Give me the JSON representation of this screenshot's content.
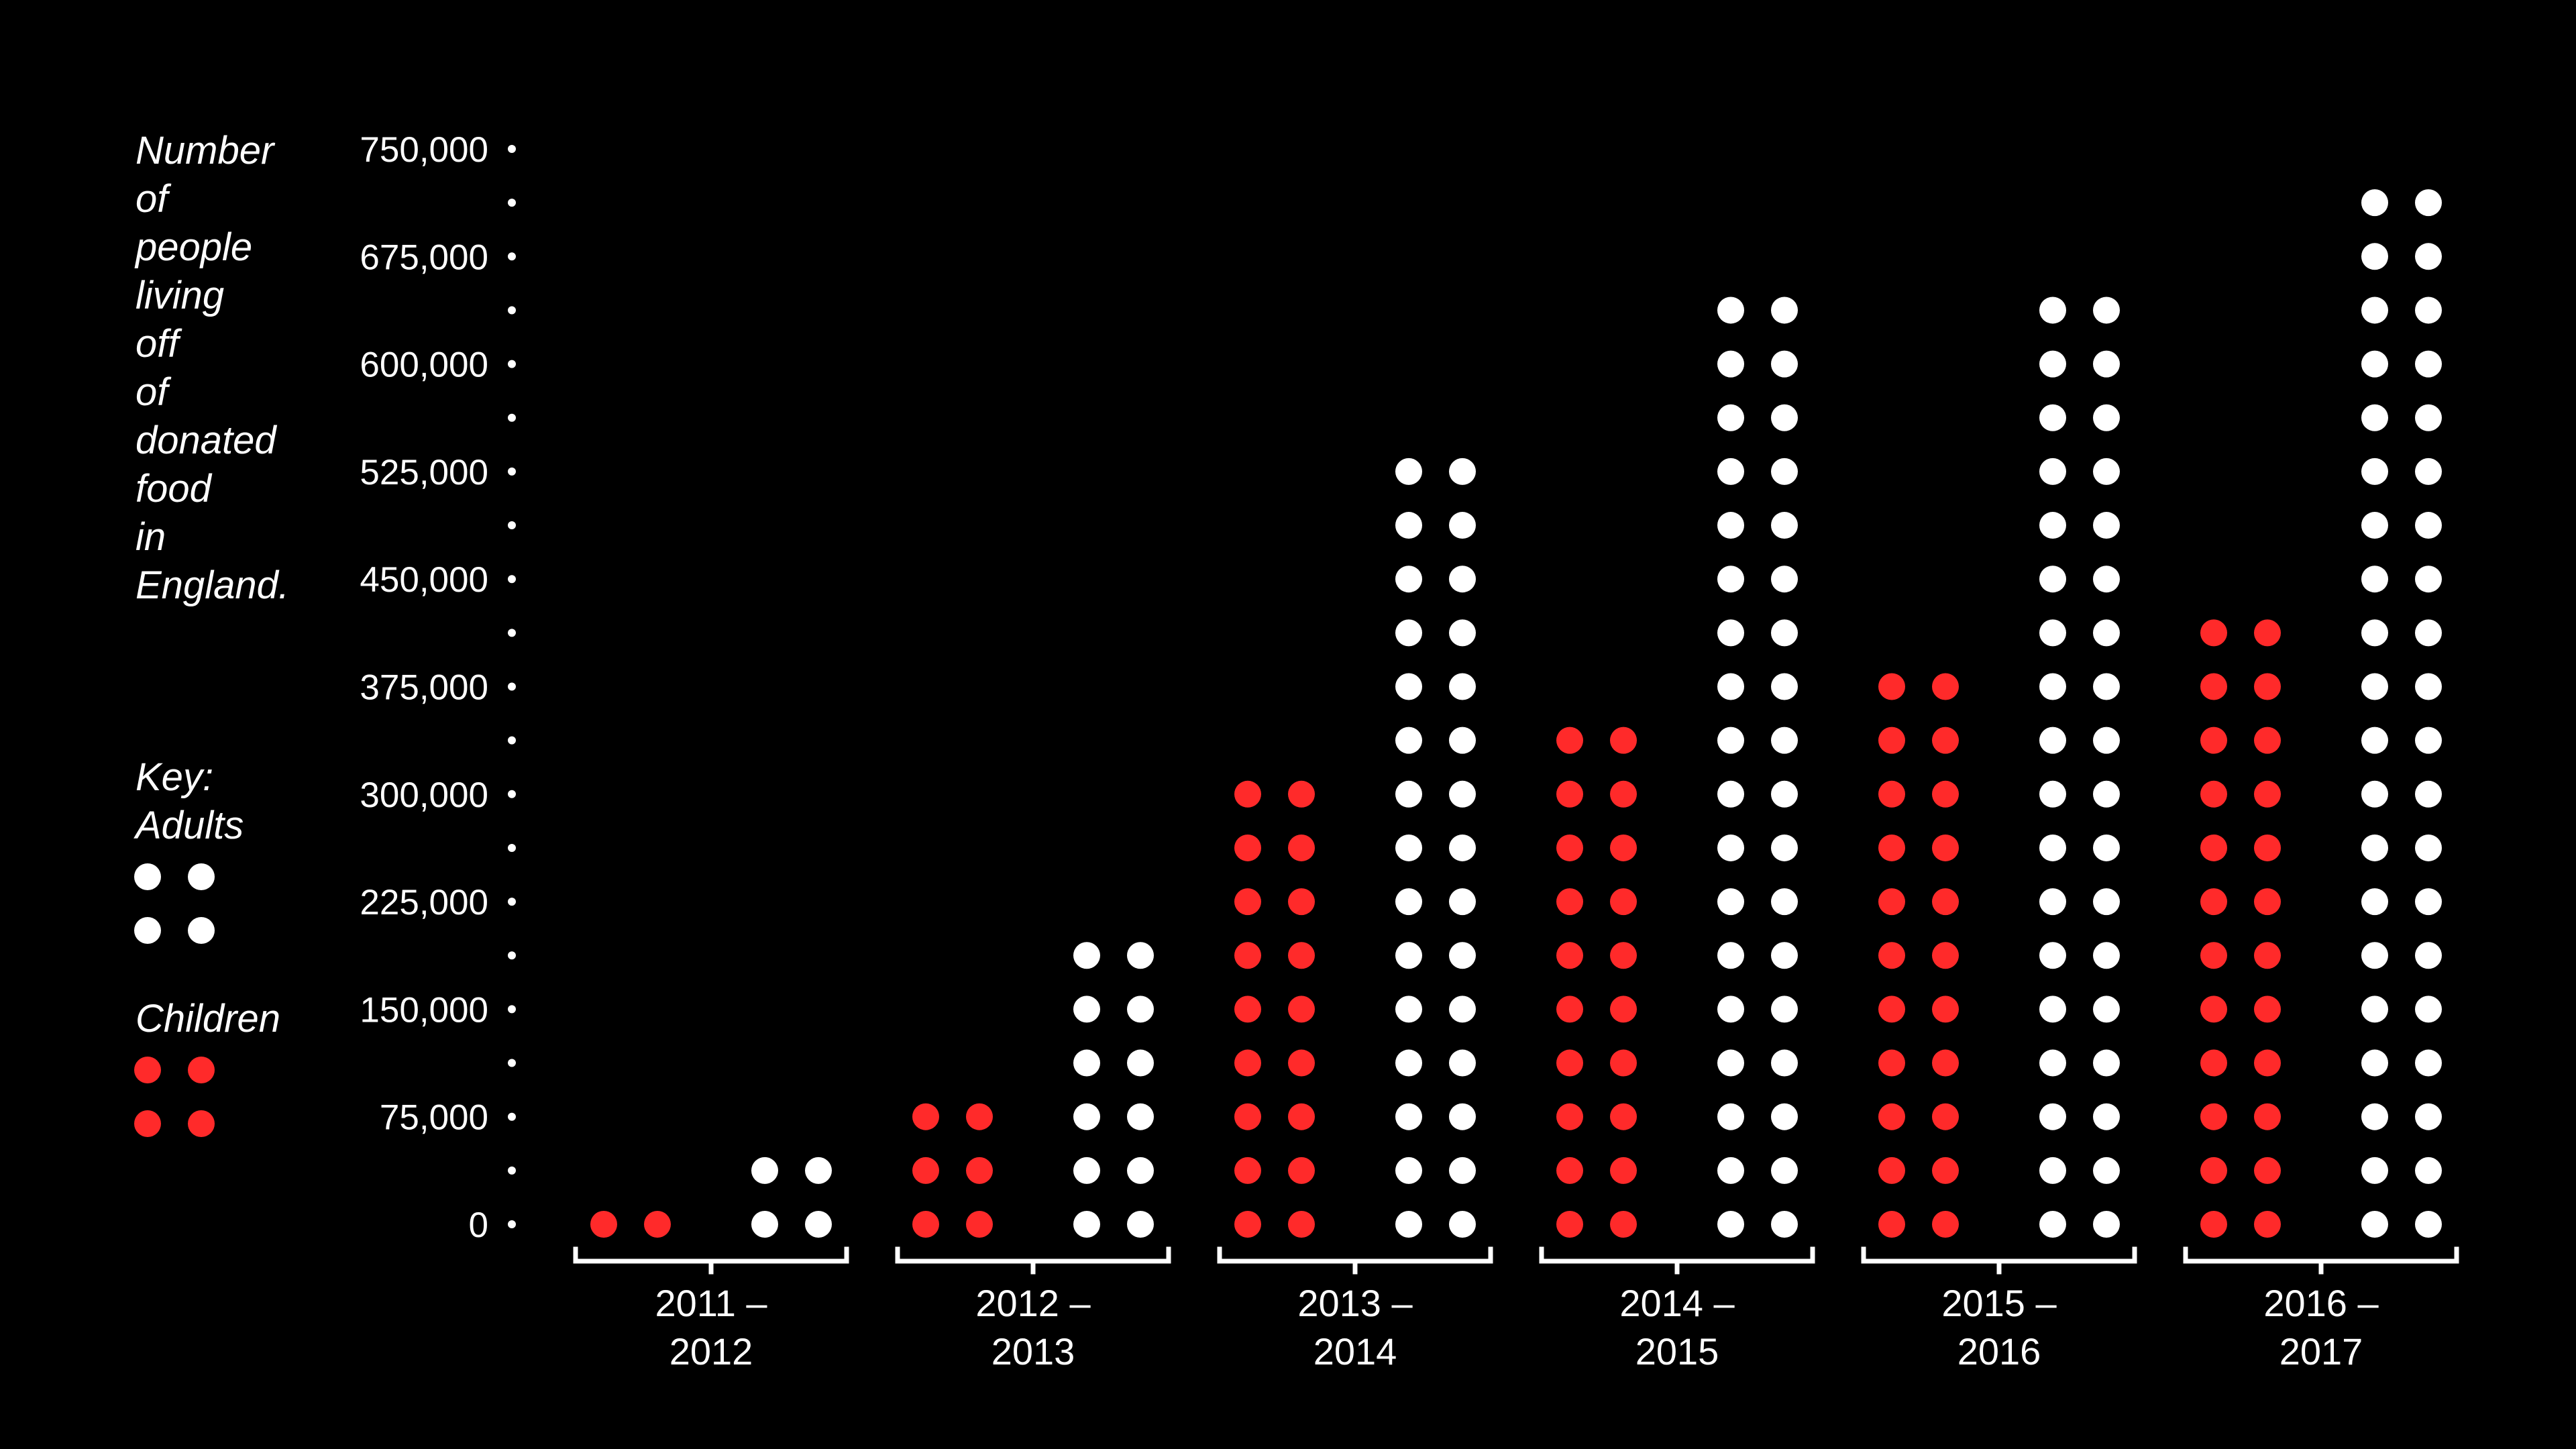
{
  "chart_data": {
    "type": "dot-matrix bar",
    "ylabel_words": [
      "Number",
      "of",
      "people",
      "living",
      "off",
      "of",
      "donated",
      "food",
      "in",
      "England."
    ],
    "key_title": "Key:",
    "categories": [
      [
        "2011 –",
        "2012"
      ],
      [
        "2012 –",
        "2013"
      ],
      [
        "2013 –",
        "2014"
      ],
      [
        "2014 –",
        "2015"
      ],
      [
        "2015 –",
        "2016"
      ],
      [
        "2016 –",
        "2017"
      ]
    ],
    "series": [
      {
        "name": "Children",
        "color": "#ff2a2a",
        "values": [
          37500,
          112500,
          337500,
          375000,
          412500,
          450000
        ]
      },
      {
        "name": "Adults",
        "color": "#ffffff",
        "values": [
          75000,
          225000,
          562500,
          675000,
          675000,
          750000
        ]
      }
    ],
    "legend_order": [
      1,
      0
    ],
    "yticks": [
      "0",
      "75,000",
      "150,000",
      "225,000",
      "300,000",
      "375,000",
      "450,000",
      "525,000",
      "600,000",
      "675,000",
      "750,000"
    ],
    "ylim": [
      0,
      750000
    ],
    "dot_unit": 37500,
    "grid": false
  }
}
